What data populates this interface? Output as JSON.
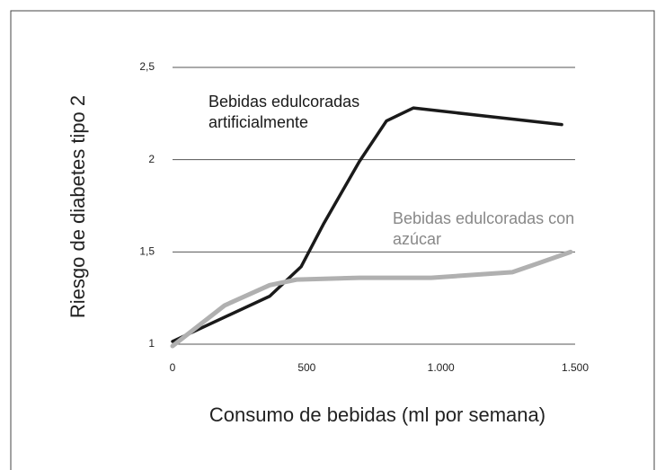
{
  "chart_data": {
    "type": "line",
    "xlabel": "Consumo de bebidas (ml por semana)",
    "ylabel": "Riesgo de diabetes tipo 2",
    "xlim": [
      0,
      1500
    ],
    "xticks": [
      0,
      500,
      {
        "value": 1000,
        "label": "1.000"
      },
      {
        "value": 1500,
        "label": "1.500"
      }
    ],
    "ylim": [
      1,
      2.5
    ],
    "yticks": [
      1,
      {
        "value": 1.5,
        "label": "1,5"
      },
      2,
      {
        "value": 2.5,
        "label": "2,5"
      }
    ],
    "grid": true,
    "series": [
      {
        "name": "Bebidas edulcoradas artificialmente",
        "color": "#1a1a1a",
        "x": [
          0,
          362,
          479,
          562,
          696,
          797,
          897,
          1450
        ],
        "values": [
          1.015,
          1.26,
          1.42,
          1.65,
          1.99,
          2.21,
          2.28,
          2.19
        ]
      },
      {
        "name": "Bebidas edulcoradas con azúcar",
        "color": "#b0b0b0",
        "x": [
          0,
          194,
          362,
          462,
          696,
          964,
          1266,
          1366,
          1483
        ],
        "values": [
          0.99,
          1.21,
          1.32,
          1.35,
          1.36,
          1.36,
          1.39,
          1.44,
          1.5
        ]
      }
    ]
  }
}
